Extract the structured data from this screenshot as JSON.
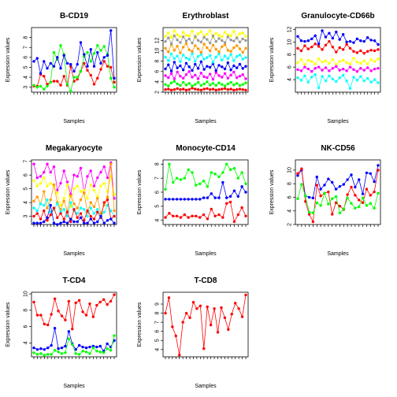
{
  "palette": [
    "#ff0000",
    "#00ff00",
    "#0000ff",
    "#00ffff",
    "#ff00ff",
    "#ffff00",
    "#ff9900",
    "#999999"
  ],
  "chart_data": [
    {
      "type": "line",
      "title": "B-CD19",
      "xlabel": "Samples",
      "ylabel": "Expression values",
      "ylim": [
        2.5,
        9
      ],
      "yticks": [
        3,
        4,
        5,
        6,
        7,
        8
      ],
      "series": [
        {
          "color": "#ff0000",
          "values": [
            3.1,
            3.1,
            4.3,
            4.1,
            3.3,
            3.5,
            3.6,
            3.6,
            3.2,
            4.1,
            3.2,
            5.1,
            3.6,
            3.8,
            4.6,
            5.4,
            4.7,
            4.2,
            3.3,
            3.9,
            4.8,
            5.6,
            5.1,
            5.0,
            3.5
          ]
        },
        {
          "color": "#00ff00",
          "values": [
            3.2,
            3.0,
            3.1,
            2.8,
            3.1,
            3.5,
            6.5,
            5.8,
            7.2,
            6.3,
            3.3,
            2.6,
            4.0,
            4.0,
            4.6,
            6.1,
            6.5,
            5.6,
            6.4,
            7.2,
            6.7,
            7.1,
            6.3,
            3.9,
            3.0
          ]
        },
        {
          "color": "#0000ff",
          "values": [
            5.6,
            5.9,
            4.4,
            5.6,
            4.9,
            5.4,
            5.1,
            6.0,
            4.9,
            6.2,
            5.4,
            5.3,
            4.6,
            5.3,
            7.5,
            6.3,
            5.1,
            6.8,
            5.1,
            6.5,
            5.4,
            6.0,
            6.2,
            8.7,
            3.9
          ]
        }
      ]
    },
    {
      "type": "line",
      "title": "Erythroblast",
      "xlabel": "Samples",
      "ylabel": "Expression values",
      "ylim": [
        2,
        14.5
      ],
      "yticks": [
        2,
        4,
        6,
        8,
        10,
        12
      ],
      "series": [
        {
          "color": "#ff0000",
          "values": [
            2.5,
            2.6,
            2.4,
            2.5,
            2.7,
            2.5,
            2.6,
            2.4,
            2.5,
            2.8,
            2.6,
            2.5,
            2.4,
            2.6,
            2.7,
            2.5,
            2.6,
            2.4,
            2.5,
            2.6,
            2.7,
            2.5,
            2.6,
            2.4,
            2.5,
            2.6,
            2.5,
            2.4
          ]
        },
        {
          "color": "#00ff00",
          "values": [
            3.5,
            3.2,
            3.8,
            4.1,
            3.6,
            3.3,
            3.9,
            3.4,
            3.7,
            3.2,
            3.5,
            3.9,
            3.3,
            3.6,
            4.0,
            3.4,
            3.7,
            3.3,
            3.8,
            3.5,
            3.2,
            3.6,
            3.9,
            3.4,
            3.7,
            3.3,
            3.5,
            3.8
          ]
        },
        {
          "color": "#ff00ff",
          "values": [
            5.2,
            4.8,
            5.6,
            4.6,
            5.9,
            5.1,
            4.7,
            5.4,
            6.0,
            4.9,
            5.3,
            4.6,
            5.7,
            5.0,
            4.8,
            5.5,
            4.5,
            5.8,
            5.2,
            4.9,
            5.6,
            4.7,
            5.3,
            5.9,
            4.8,
            5.1,
            5.4,
            4.6
          ]
        },
        {
          "color": "#0000ff",
          "values": [
            6.5,
            7.3,
            6.1,
            7.8,
            6.7,
            7.1,
            6.3,
            7.6,
            6.9,
            6.2,
            7.4,
            6.6,
            7.9,
            6.4,
            7.0,
            6.8,
            7.5,
            6.2,
            7.2,
            6.9,
            6.5,
            7.7,
            6.3,
            7.1,
            6.7,
            7.4,
            6.6,
            7.0
          ]
        },
        {
          "color": "#00ffff",
          "values": [
            8.8,
            8.1,
            9.4,
            8.5,
            9.0,
            7.9,
            9.2,
            8.6,
            8.3,
            9.5,
            8.0,
            8.9,
            9.3,
            8.4,
            8.7,
            9.1,
            7.8,
            8.8,
            9.4,
            8.2,
            9.0,
            8.5,
            9.3,
            8.1,
            8.9,
            9.2,
            8.4,
            8.7
          ]
        },
        {
          "color": "#ff9900",
          "values": [
            10.5,
            9.8,
            11.2,
            10.1,
            10.9,
            9.6,
            10.7,
            11.4,
            10.2,
            9.9,
            11.0,
            10.4,
            9.7,
            11.3,
            10.6,
            10.0,
            11.1,
            10.3,
            9.8,
            10.8,
            11.2,
            10.1,
            9.9,
            10.6,
            11.0,
            10.4,
            9.7,
            10.5
          ]
        },
        {
          "color": "#ffff00",
          "values": [
            12.8,
            13.5,
            12.6,
            13.9,
            13.1,
            12.7,
            13.6,
            13.0,
            12.9,
            13.8,
            12.5,
            13.3,
            13.7,
            12.8,
            13.2,
            13.9,
            12.6,
            13.4,
            13.0,
            12.7,
            13.6,
            13.1,
            12.9,
            13.8,
            12.6,
            13.3,
            13.5,
            12.8
          ]
        },
        {
          "color": "#999999",
          "values": [
            11.8,
            12.5,
            11.4,
            12.9,
            12.1,
            11.6,
            12.7,
            11.9,
            12.3,
            11.5,
            12.8,
            12.0,
            11.7,
            12.6,
            12.2,
            11.5,
            12.9,
            11.8,
            12.4,
            12.0,
            11.6,
            12.7,
            12.1,
            11.9,
            12.5,
            11.7,
            12.3,
            12.0
          ]
        }
      ]
    },
    {
      "type": "line",
      "title": "Granulocyte-CD66b",
      "xlabel": "Samples",
      "ylabel": "Expression values",
      "ylim": [
        2,
        12.3
      ],
      "yticks": [
        4,
        6,
        8,
        10,
        12
      ],
      "series": [
        {
          "color": "#0000ff",
          "values": [
            10.9,
            10.2,
            10.1,
            10.2,
            10.5,
            11.0,
            9.7,
            11.8,
            10.8,
            11.4,
            10.6,
            11.6,
            10.4,
            11.2,
            10.0,
            10.1,
            9.9,
            10.5,
            10.2,
            10.1,
            10.7,
            10.3,
            10.2,
            9.6
          ]
        },
        {
          "color": "#ff0000",
          "values": [
            9.0,
            8.6,
            9.4,
            8.9,
            9.2,
            9.7,
            9.3,
            8.8,
            9.5,
            10.1,
            9.2,
            8.4,
            9.1,
            8.8,
            9.6,
            9.0,
            8.5,
            8.3,
            8.6,
            8.2,
            8.5,
            8.7,
            8.6,
            8.8
          ]
        },
        {
          "color": "#ffff00",
          "values": [
            6.7,
            7.2,
            6.4,
            7.1,
            6.9,
            6.5,
            7.3,
            6.8,
            7.0,
            6.6,
            7.2,
            6.4,
            6.9,
            7.1,
            6.7,
            6.5,
            7.4,
            6.8,
            6.6,
            7.0,
            6.5,
            7.2,
            6.9,
            7.3
          ]
        },
        {
          "color": "#ff00ff",
          "values": [
            5.6,
            5.4,
            6.0,
            5.7,
            5.3,
            5.8,
            6.0,
            5.5,
            5.9,
            5.4,
            5.8,
            6.1,
            5.5,
            5.7,
            5.4,
            6.0,
            5.6,
            5.3,
            5.8,
            5.5,
            5.9,
            5.4,
            5.7,
            5.8
          ]
        },
        {
          "color": "#00ffff",
          "values": [
            4.3,
            3.9,
            4.6,
            3.6,
            4.4,
            4.8,
            2.7,
            4.5,
            3.8,
            4.6,
            4.1,
            3.7,
            4.3,
            4.7,
            3.8,
            2.6,
            4.4,
            3.9,
            4.5,
            3.8,
            4.2,
            3.6,
            4.0,
            3.5
          ]
        }
      ]
    },
    {
      "type": "line",
      "title": "Megakaryocyte",
      "xlabel": "Samples",
      "ylabel": "Expression values",
      "ylim": [
        2.4,
        7.1
      ],
      "yticks": [
        3,
        4,
        5,
        6,
        7
      ],
      "series": [
        {
          "color": "#ff00ff",
          "values": [
            6.8,
            5.8,
            5.9,
            6.2,
            6.8,
            6.2,
            6.6,
            4.9,
            5.4,
            6.3,
            5.5,
            4.6,
            6.0,
            5.9,
            6.5,
            4.7,
            5.9,
            6.3,
            5.2,
            5.8,
            6.2,
            6.6,
            5.8,
            6.9,
            4.3
          ]
        },
        {
          "color": "#ffff00",
          "values": [
            5.6,
            5.2,
            5.4,
            5.8,
            5.2,
            5.4,
            5.2,
            4.7,
            3.8,
            4.3,
            5.3,
            3.7,
            5.0,
            5.2,
            4.8,
            4.9,
            4.3,
            5.3,
            4.9,
            4.4,
            5.2,
            5.4,
            4.8,
            5.9,
            4.6
          ]
        },
        {
          "color": "#ff9900",
          "values": [
            4.1,
            4.4,
            3.9,
            4.8,
            3.6,
            4.2,
            5.3,
            4.0,
            3.5,
            4.1,
            3.4,
            4.5,
            3.9,
            3.6,
            4.2,
            4.7,
            3.3,
            4.0,
            3.7,
            4.3,
            3.2,
            3.8,
            4.4,
            6.8,
            3.4
          ]
        },
        {
          "color": "#00ffff",
          "values": [
            3.6,
            3.4,
            3.9,
            3.8,
            4.2,
            3.3,
            3.5,
            3.9,
            3.3,
            3.5,
            3.0,
            4.0,
            3.4,
            3.2,
            3.6,
            3.5,
            3.0,
            3.6,
            3.2,
            3.5,
            3.0,
            3.3,
            3.8,
            3.4,
            3.0
          ]
        },
        {
          "color": "#ff0000",
          "values": [
            3.0,
            3.2,
            2.8,
            3.4,
            2.7,
            3.1,
            3.6,
            2.9,
            3.2,
            2.8,
            3.3,
            2.6,
            3.5,
            2.9,
            3.2,
            2.7,
            3.4,
            3.0,
            2.8,
            3.3,
            2.9,
            4.0,
            4.2,
            2.8,
            3.0
          ]
        },
        {
          "color": "#0000ff",
          "values": [
            2.5,
            2.5,
            2.5,
            2.6,
            2.9,
            3.8,
            2.5,
            2.4,
            2.5,
            2.6,
            2.5,
            2.8,
            2.6,
            2.6,
            2.9,
            2.5,
            2.5,
            2.8,
            2.5,
            2.6,
            3.0,
            2.5,
            2.7,
            2.8,
            2.5
          ]
        }
      ]
    },
    {
      "type": "line",
      "title": "Monocyte-CD14",
      "xlabel": "Samples",
      "ylabel": "Expression values",
      "ylim": [
        3.7,
        8.3
      ],
      "yticks": [
        4,
        5,
        6,
        7,
        8
      ],
      "series": [
        {
          "color": "#00ff00",
          "values": [
            6.2,
            8.0,
            6.7,
            7.0,
            6.9,
            7.0,
            7.6,
            7.4,
            6.5,
            6.6,
            6.8,
            6.4,
            7.4,
            7.3,
            7.1,
            7.4,
            8.0,
            7.6,
            7.7,
            7.0,
            7.4,
            6.6
          ]
        },
        {
          "color": "#0000ff",
          "values": [
            5.5,
            5.5,
            5.5,
            5.5,
            5.5,
            5.5,
            5.5,
            5.5,
            5.5,
            5.5,
            5.6,
            5.6,
            5.9,
            5.6,
            5.6,
            6.7,
            5.6,
            5.7,
            6.1,
            5.7,
            6.4,
            6.0
          ]
        },
        {
          "color": "#ff0000",
          "values": [
            4.2,
            4.5,
            4.3,
            4.3,
            4.2,
            4.4,
            4.2,
            4.3,
            4.3,
            4.2,
            4.4,
            4.1,
            4.8,
            4.3,
            4.4,
            4.2,
            5.2,
            5.3,
            3.9,
            4.4,
            4.9,
            4.3
          ]
        }
      ]
    },
    {
      "type": "line",
      "title": "NK-CD56",
      "xlabel": "Samples",
      "ylabel": "Expression values",
      "ylim": [
        2,
        11.5
      ],
      "yticks": [
        2,
        4,
        6,
        8,
        10
      ],
      "series": [
        {
          "color": "#0000ff",
          "values": [
            9.2,
            10.0,
            6.2,
            6.0,
            5.9,
            9.0,
            7.2,
            7.8,
            8.7,
            8.2,
            7.2,
            7.6,
            7.9,
            8.6,
            9.3,
            7.5,
            8.6,
            6.5,
            9.6,
            9.5,
            8.3,
            10.7
          ]
        },
        {
          "color": "#ff0000",
          "values": [
            9.5,
            10.2,
            5.4,
            3.5,
            2.4,
            7.8,
            6.2,
            6.6,
            6.8,
            3.5,
            5.2,
            4.7,
            4.2,
            6.4,
            7.5,
            6.3,
            5.6,
            5.2,
            7.2,
            6.3,
            6.8,
            10.0
          ]
        },
        {
          "color": "#00ff00",
          "values": [
            5.8,
            7.9,
            6.2,
            3.8,
            3.7,
            5.2,
            4.8,
            6.6,
            5.0,
            5.8,
            6.1,
            3.7,
            4.3,
            5.9,
            5.1,
            4.4,
            4.6,
            5.9,
            4.8,
            5.1,
            4.4,
            6.6
          ]
        }
      ]
    },
    {
      "type": "line",
      "title": "T-CD4",
      "xlabel": "Samples",
      "ylabel": "Expression values",
      "ylim": [
        2.3,
        10.2
      ],
      "yticks": [
        4,
        6,
        8,
        10
      ],
      "series": [
        {
          "color": "#ff0000",
          "values": [
            9.0,
            7.4,
            7.4,
            6.3,
            6.2,
            7.5,
            9.4,
            7.9,
            7.3,
            6.8,
            9.1,
            5.7,
            8.9,
            9.2,
            7.8,
            7.4,
            8.8,
            7.2,
            8.6,
            9.0,
            9.3,
            8.7,
            9.1,
            9.9
          ]
        },
        {
          "color": "#0000ff",
          "values": [
            3.4,
            3.2,
            3.3,
            3.2,
            3.4,
            3.7,
            5.8,
            3.3,
            3.4,
            3.6,
            5.4,
            3.9,
            3.2,
            3.7,
            3.5,
            3.4,
            3.5,
            3.6,
            3.5,
            3.6,
            3.0,
            3.9,
            3.5,
            4.3
          ]
        },
        {
          "color": "#00ff00",
          "values": [
            2.8,
            2.6,
            2.7,
            2.5,
            2.6,
            2.6,
            3.1,
            2.9,
            2.7,
            2.8,
            4.5,
            3.8,
            2.7,
            2.6,
            3.0,
            2.9,
            2.7,
            3.4,
            3.0,
            2.9,
            2.8,
            3.3,
            3.1,
            4.9
          ]
        }
      ]
    },
    {
      "type": "line",
      "title": "T-CD8",
      "xlabel": "Samples",
      "ylabel": "Expression values",
      "ylim": [
        3.2,
        10.3
      ],
      "yticks": [
        4,
        5,
        6,
        7,
        8,
        9
      ],
      "series": [
        {
          "color": "#ff0000",
          "values": [
            8.0,
            9.7,
            6.5,
            5.5,
            3.4,
            7.0,
            8.0,
            7.5,
            9.2,
            8.5,
            8.8,
            4.1,
            8.7,
            6.7,
            8.5,
            5.9,
            8.6,
            7.5,
            6.2,
            7.9,
            9.1,
            8.5,
            7.6,
            10.0
          ]
        }
      ]
    }
  ]
}
